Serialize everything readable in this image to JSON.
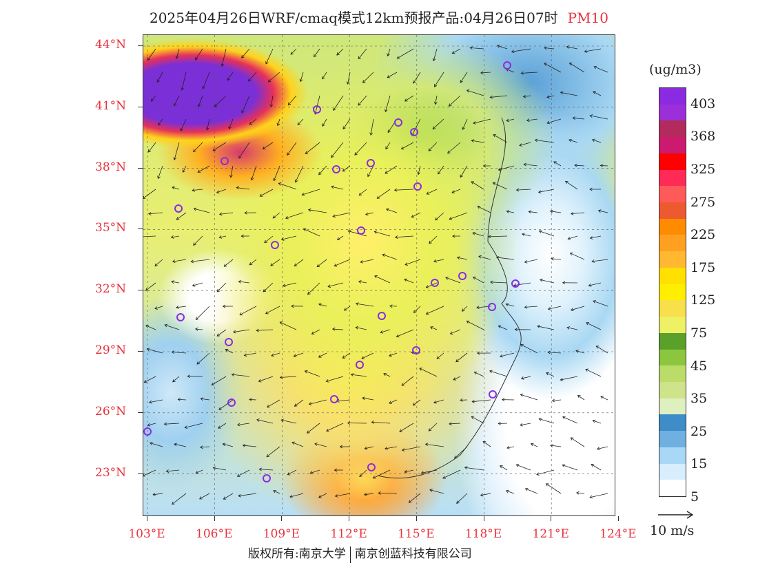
{
  "title": "2025年04月26日WRF/cmaq模式12km预报产品:04月26日07时",
  "pollutant": "PM10",
  "lat_labels": [
    "44°N",
    "41°N",
    "38°N",
    "35°N",
    "32°N",
    "29°N",
    "26°N",
    "23°N"
  ],
  "lon_labels": [
    "103°E",
    "106°E",
    "109°E",
    "112°E",
    "115°E",
    "118°E",
    "121°E",
    "124°E"
  ],
  "colorbar": {
    "unit": "(ug/m3)",
    "colors": [
      "#8a2be2",
      "#9b30d9",
      "#b22b5c",
      "#cc1a6e",
      "#ff0000",
      "#ff2a55",
      "#ff5a5a",
      "#ee5a30",
      "#ff8c00",
      "#ffa020",
      "#ffb830",
      "#ffe000",
      "#ffee00",
      "#f7e04a",
      "#eef066",
      "#5aa02a",
      "#8cc63f",
      "#bcdc6a",
      "#cfe38a",
      "#dff0c0",
      "#3e8cc8",
      "#6fb0e0",
      "#a8d8f5",
      "#d8eefc",
      "#ffffff"
    ],
    "labels": [
      "403",
      "368",
      "325",
      "275",
      "225",
      "175",
      "125",
      "75",
      "45",
      "35",
      "25",
      "15",
      "5"
    ]
  },
  "wind_scale_label": "10 m/s",
  "footer": {
    "copyright": "版权所有:南京大学",
    "company": "南京创蓝科技有限公司"
  },
  "colors": {
    "accent_red": "#e8323c",
    "city_marker": "#8a2be2"
  }
}
